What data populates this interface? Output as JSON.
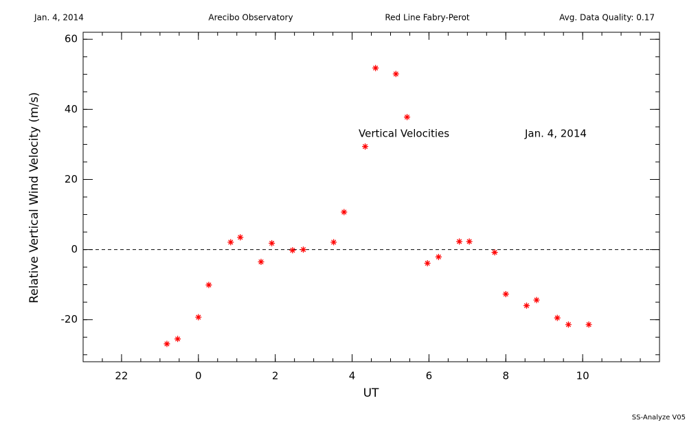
{
  "chart_data": {
    "type": "scatter",
    "header": [
      "Jan. 4, 2014",
      "Arecibo Observatory",
      "Red Line Fabry-Perot",
      "Avg. Data Quality: 0.17"
    ],
    "annotations": [
      "Vertical Velocities",
      "Jan. 4, 2014"
    ],
    "footer": "SS-Analyze V05",
    "xlabel": "UT",
    "ylabel": "Relative Vertical Wind Velocity (m/s)",
    "xlim": [
      -3,
      12
    ],
    "ylim": [
      -32,
      62
    ],
    "xticks": [
      {
        "value": -2,
        "label": "22"
      },
      0,
      2,
      4,
      6,
      8,
      10
    ],
    "yticks": [
      -20,
      0,
      20,
      40,
      60
    ],
    "minor_xstep": 0.5,
    "minor_ystep": 5,
    "reference_line": 0,
    "color": "#ff0000",
    "x": [
      -0.82,
      -0.54,
      0.0,
      0.27,
      0.84,
      1.09,
      1.63,
      1.91,
      2.45,
      2.73,
      3.52,
      3.79,
      4.34,
      4.61,
      5.14,
      5.43,
      5.96,
      6.25,
      6.79,
      7.05,
      7.71,
      8.0,
      8.54,
      8.8,
      9.34,
      9.63,
      10.16
    ],
    "values": [
      -26.9,
      -25.5,
      -19.3,
      -10.1,
      2.1,
      3.5,
      -3.5,
      1.8,
      -0.2,
      0.0,
      2.1,
      10.7,
      29.4,
      51.8,
      50.1,
      37.8,
      -3.9,
      -2.1,
      2.3,
      2.3,
      -0.8,
      -12.7,
      -16.0,
      -14.4,
      -19.5,
      -21.4,
      -21.4
    ]
  }
}
